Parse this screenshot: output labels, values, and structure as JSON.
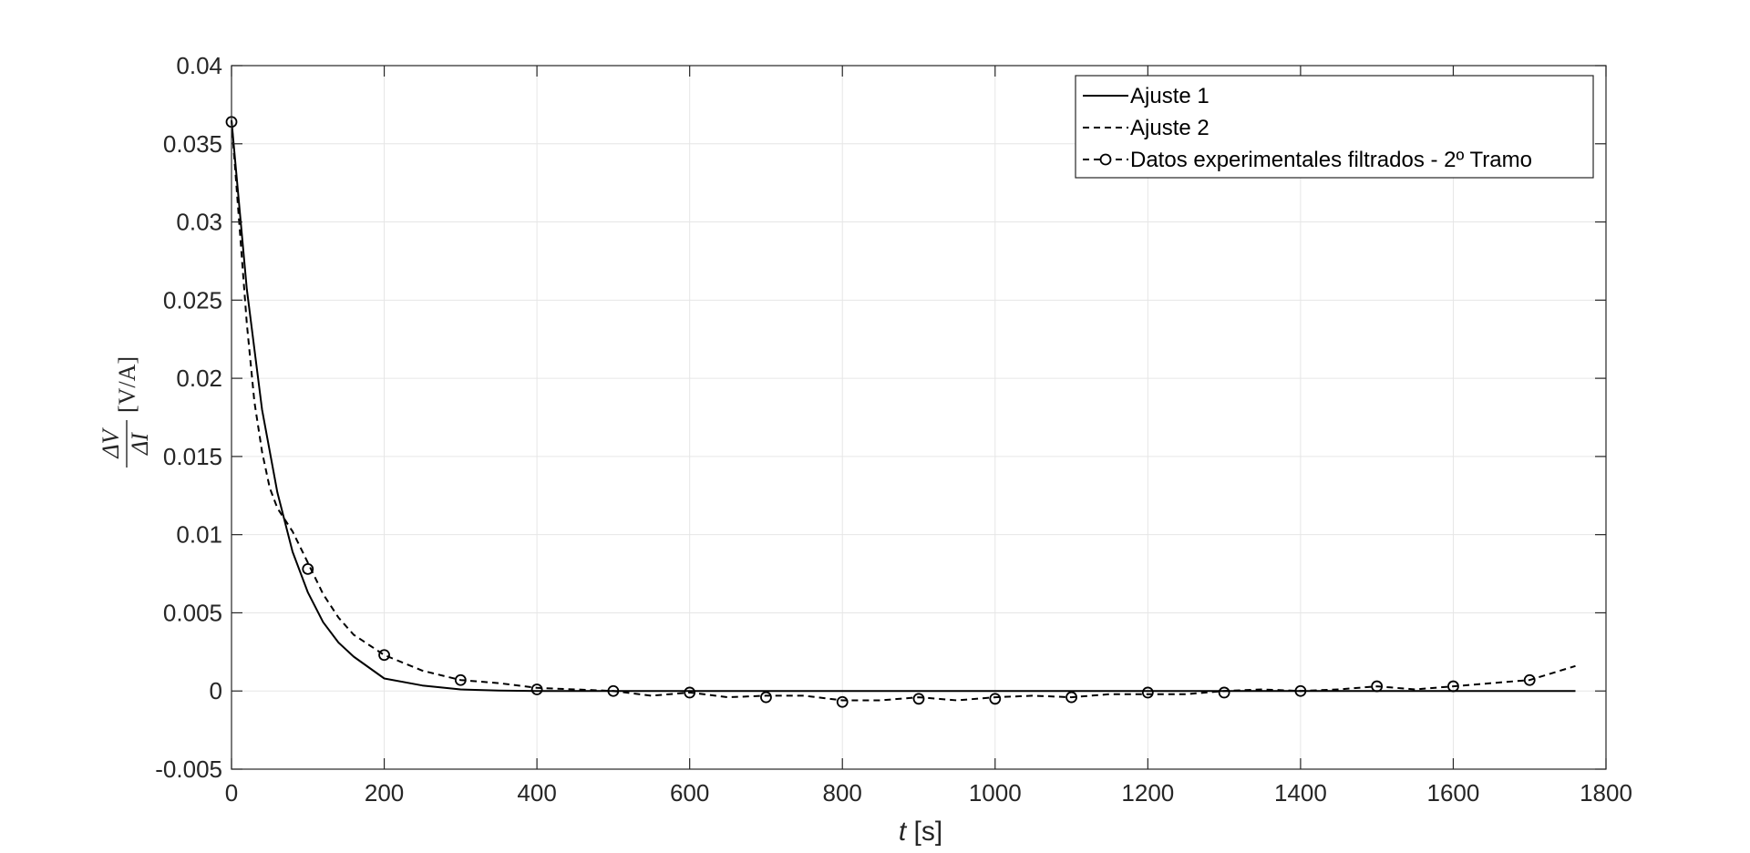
{
  "chart_data": {
    "type": "line",
    "title": "",
    "xlabel": {
      "var": "t",
      "unit": "[s]"
    },
    "ylabel": {
      "numerator": "ΔV",
      "denominator": "ΔI",
      "unit": "[V/A]"
    },
    "xlim": [
      0,
      1800
    ],
    "ylim": [
      -0.005,
      0.04
    ],
    "xticks": [
      0,
      200,
      400,
      600,
      800,
      1000,
      1200,
      1400,
      1600,
      1800
    ],
    "yticks": [
      -0.005,
      0,
      0.005,
      0.01,
      0.015,
      0.02,
      0.025,
      0.03,
      0.035,
      0.04
    ],
    "xtick_labels": [
      "0",
      "200",
      "400",
      "600",
      "800",
      "1000",
      "1200",
      "1400",
      "1600",
      "1800"
    ],
    "ytick_labels": [
      "-0.005",
      "0",
      "0.005",
      "0.01",
      "0.015",
      "0.02",
      "0.025",
      "0.03",
      "0.035",
      "0.04"
    ],
    "grid": true,
    "legend_position": "top-right",
    "colors": {
      "lines": "#000000",
      "grid": "#e6e6e6",
      "axes": "#262626"
    },
    "series": [
      {
        "name": "Ajuste 1",
        "style": "solid",
        "marker": "none",
        "x": [
          0,
          20,
          40,
          60,
          80,
          100,
          120,
          140,
          160,
          180,
          200,
          250,
          300,
          350,
          400,
          500,
          600,
          800,
          1000,
          1200,
          1400,
          1600,
          1760
        ],
        "y": [
          0.0365,
          0.0257,
          0.018,
          0.0127,
          0.0089,
          0.0063,
          0.0044,
          0.0031,
          0.0022,
          0.0015,
          0.0008,
          0.00035,
          0.0001,
          3e-05,
          0.0,
          0.0,
          0.0,
          0.0,
          0.0,
          0.0,
          0.0,
          0.0,
          0.0
        ]
      },
      {
        "name": "Ajuste 2",
        "style": "dashed",
        "marker": "none",
        "x": [
          0,
          10,
          20,
          30,
          40,
          50,
          60,
          80,
          100,
          120,
          140,
          160,
          200,
          250,
          300,
          350,
          400,
          450,
          500,
          550,
          600,
          650,
          700,
          750,
          800,
          850,
          900,
          950,
          1000,
          1050,
          1100,
          1150,
          1200,
          1250,
          1300,
          1350,
          1400,
          1450,
          1500,
          1550,
          1600,
          1650,
          1700,
          1760
        ],
        "y": [
          0.0365,
          0.03,
          0.0235,
          0.0185,
          0.0153,
          0.013,
          0.0117,
          0.0102,
          0.0082,
          0.0062,
          0.0047,
          0.0036,
          0.0023,
          0.0013,
          0.0007,
          0.0005,
          0.0002,
          0.0001,
          0.0,
          -0.0003,
          -0.0001,
          -0.0004,
          -0.0003,
          -0.0003,
          -0.0006,
          -0.0006,
          -0.0004,
          -0.0006,
          -0.0004,
          -0.0003,
          -0.0004,
          -0.0002,
          -0.0002,
          -0.0002,
          0.0,
          0.0001,
          0.0,
          0.0001,
          0.0003,
          0.0001,
          0.0003,
          0.0005,
          0.0007,
          0.0016
        ]
      },
      {
        "name": "Datos experimentales filtrados - 2º Tramo",
        "style": "dashed",
        "marker": "circle",
        "x": [
          0,
          100,
          200,
          300,
          400,
          500,
          600,
          700,
          800,
          900,
          1000,
          1100,
          1200,
          1300,
          1400,
          1500,
          1600,
          1700
        ],
        "y": [
          0.0364,
          0.0078,
          0.0023,
          0.0007,
          0.0001,
          0.0,
          -0.0001,
          -0.0004,
          -0.0007,
          -0.0005,
          -0.0005,
          -0.0004,
          -0.0001,
          -0.0001,
          0.0,
          0.0003,
          0.0003,
          0.0007
        ]
      }
    ]
  }
}
